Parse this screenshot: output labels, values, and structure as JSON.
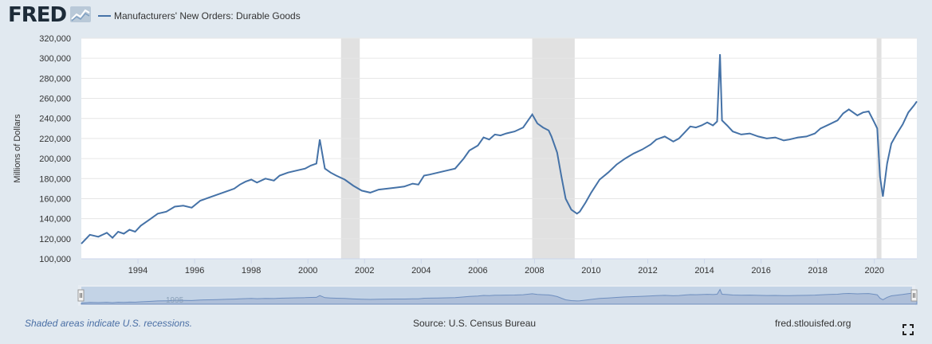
{
  "brand": {
    "logo_text": "FRED",
    "logo_icon": "chart-line-icon"
  },
  "footer": {
    "recession_note": "Shaded areas indicate U.S. recessions.",
    "source": "Source: U.S. Census Bureau",
    "site": "fred.stlouisfed.org",
    "fullscreen_icon": "fullscreen-icon"
  },
  "navigator": {
    "label": "1995"
  },
  "colors": {
    "line": "#4572a7",
    "recession": "#e1e1e1",
    "page_bg": "#e1e9f0"
  },
  "chart_data": {
    "type": "line",
    "title": "",
    "ylabel": "Millions of Dollars",
    "xlabel": "",
    "xlim": [
      1992.0,
      2021.5
    ],
    "ylim": [
      100000,
      320000
    ],
    "grid": true,
    "legend_position": "top-left",
    "yticks": [
      100000,
      120000,
      140000,
      160000,
      180000,
      200000,
      220000,
      240000,
      260000,
      280000,
      300000,
      320000
    ],
    "ytick_labels": [
      "100,000",
      "120,000",
      "140,000",
      "160,000",
      "180,000",
      "200,000",
      "220,000",
      "240,000",
      "260,000",
      "280,000",
      "300,000",
      "320,000"
    ],
    "xticks": [
      1994,
      1996,
      1998,
      2000,
      2002,
      2004,
      2006,
      2008,
      2010,
      2012,
      2014,
      2016,
      2018,
      2020
    ],
    "xtick_labels": [
      "1994",
      "1996",
      "1998",
      "2000",
      "2002",
      "2004",
      "2006",
      "2008",
      "2010",
      "2012",
      "2014",
      "2016",
      "2018",
      "2020"
    ],
    "recessions": [
      [
        2001.17,
        2001.83
      ],
      [
        2007.92,
        2009.42
      ],
      [
        2020.08,
        2020.25
      ]
    ],
    "series": [
      {
        "name": "Manufacturers' New Orders: Durable Goods",
        "x": [
          1992.0,
          1992.3,
          1992.6,
          1992.9,
          1993.1,
          1993.3,
          1993.5,
          1993.7,
          1993.9,
          1994.1,
          1994.4,
          1994.7,
          1995.0,
          1995.3,
          1995.6,
          1995.9,
          1996.2,
          1996.5,
          1996.8,
          1997.0,
          1997.2,
          1997.4,
          1997.6,
          1997.8,
          1998.0,
          1998.2,
          1998.5,
          1998.8,
          1999.0,
          1999.3,
          1999.6,
          1999.9,
          2000.1,
          2000.3,
          2000.42,
          2000.6,
          2000.8,
          2001.0,
          2001.3,
          2001.6,
          2001.9,
          2002.2,
          2002.5,
          2002.8,
          2003.1,
          2003.4,
          2003.7,
          2003.9,
          2004.1,
          2004.3,
          2004.6,
          2004.9,
          2005.2,
          2005.5,
          2005.7,
          2006.0,
          2006.2,
          2006.4,
          2006.6,
          2006.8,
          2007.0,
          2007.3,
          2007.6,
          2007.92,
          2008.1,
          2008.3,
          2008.5,
          2008.6,
          2008.8,
          2008.95,
          2009.1,
          2009.3,
          2009.5,
          2009.6,
          2009.8,
          2010.0,
          2010.3,
          2010.6,
          2010.9,
          2011.2,
          2011.5,
          2011.8,
          2012.1,
          2012.3,
          2012.6,
          2012.9,
          2013.1,
          2013.3,
          2013.5,
          2013.7,
          2013.9,
          2014.1,
          2014.3,
          2014.45,
          2014.55,
          2014.62,
          2014.8,
          2015.0,
          2015.3,
          2015.6,
          2015.9,
          2016.2,
          2016.5,
          2016.8,
          2017.0,
          2017.3,
          2017.6,
          2017.9,
          2018.1,
          2018.4,
          2018.7,
          2018.9,
          2019.1,
          2019.4,
          2019.6,
          2019.8,
          2020.0,
          2020.1,
          2020.2,
          2020.3,
          2020.45,
          2020.6,
          2020.8,
          2021.0,
          2021.2,
          2021.4,
          2021.5
        ],
        "y": [
          115000,
          124000,
          122000,
          126000,
          121000,
          127000,
          125000,
          129000,
          127000,
          133000,
          139000,
          145000,
          147000,
          152000,
          153000,
          151000,
          158000,
          161000,
          164000,
          166000,
          168000,
          170000,
          174000,
          177000,
          179000,
          176000,
          180000,
          178000,
          183000,
          186000,
          188000,
          190000,
          193000,
          195000,
          219000,
          190000,
          186000,
          183000,
          179000,
          173000,
          168000,
          166000,
          169000,
          170000,
          171000,
          172000,
          175000,
          174000,
          183000,
          184000,
          186000,
          188000,
          190000,
          200000,
          208000,
          213000,
          221000,
          219000,
          224000,
          223000,
          225000,
          227000,
          231000,
          244000,
          235000,
          231000,
          228000,
          222000,
          206000,
          182000,
          160000,
          149000,
          145000,
          147000,
          156000,
          166000,
          179000,
          186000,
          194000,
          200000,
          205000,
          209000,
          214000,
          219000,
          222000,
          217000,
          220000,
          226000,
          232000,
          231000,
          233000,
          236000,
          233000,
          237000,
          304000,
          238000,
          233000,
          227000,
          224000,
          225000,
          222000,
          220000,
          221000,
          218000,
          219000,
          221000,
          222000,
          225000,
          230000,
          234000,
          238000,
          245000,
          249000,
          243000,
          246000,
          247000,
          236000,
          230000,
          182000,
          162000,
          195000,
          215000,
          225000,
          234000,
          246000,
          253000,
          257000
        ]
      }
    ]
  }
}
